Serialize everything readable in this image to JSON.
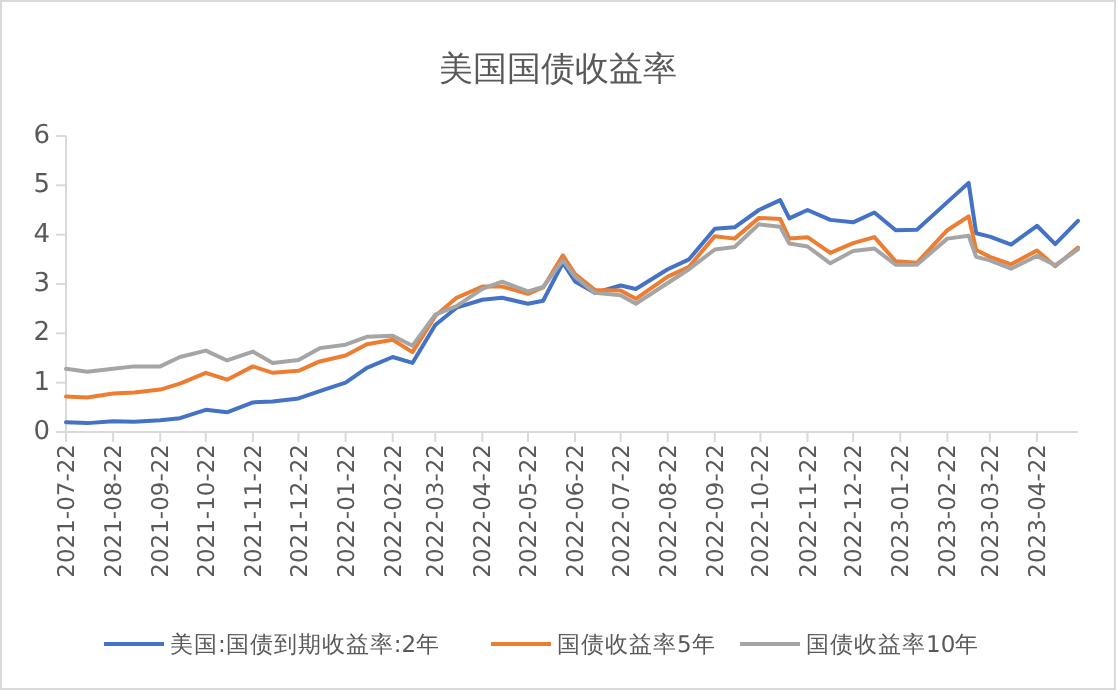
{
  "chart_data": {
    "type": "line",
    "title": "美国国债收益率",
    "x": [
      "2021-07-22",
      "2021-08-05",
      "2021-08-22",
      "2021-09-05",
      "2021-09-22",
      "2021-10-05",
      "2021-10-22",
      "2021-11-05",
      "2021-11-22",
      "2021-12-05",
      "2021-12-22",
      "2022-01-05",
      "2022-01-22",
      "2022-02-05",
      "2022-02-22",
      "2022-03-07",
      "2022-03-22",
      "2022-04-05",
      "2022-04-22",
      "2022-05-05",
      "2022-05-22",
      "2022-06-01",
      "2022-06-14",
      "2022-06-22",
      "2022-07-05",
      "2022-07-22",
      "2022-08-01",
      "2022-08-22",
      "2022-09-05",
      "2022-09-22",
      "2022-10-05",
      "2022-10-21",
      "2022-11-04",
      "2022-11-10",
      "2022-11-22",
      "2022-12-07",
      "2022-12-22",
      "2023-01-05",
      "2023-01-19",
      "2023-02-02",
      "2023-02-22",
      "2023-03-08",
      "2023-03-13",
      "2023-03-22",
      "2023-04-05",
      "2023-04-22",
      "2023-05-04",
      "2023-05-19"
    ],
    "series": [
      {
        "name": "美国:国债到期收益率:2年",
        "color": "#4472c4",
        "values": [
          0.2,
          0.18,
          0.22,
          0.21,
          0.24,
          0.28,
          0.45,
          0.4,
          0.6,
          0.62,
          0.68,
          0.83,
          1.0,
          1.3,
          1.52,
          1.4,
          2.17,
          2.52,
          2.68,
          2.72,
          2.6,
          2.66,
          3.43,
          3.05,
          2.82,
          2.97,
          2.9,
          3.3,
          3.5,
          4.12,
          4.15,
          4.5,
          4.7,
          4.33,
          4.5,
          4.3,
          4.25,
          4.45,
          4.09,
          4.1,
          4.66,
          5.05,
          4.03,
          3.96,
          3.8,
          4.18,
          3.81,
          4.28
        ]
      },
      {
        "name": "国债收益率5年",
        "color": "#ed7d31",
        "values": [
          0.72,
          0.7,
          0.78,
          0.8,
          0.86,
          0.98,
          1.2,
          1.06,
          1.33,
          1.2,
          1.24,
          1.43,
          1.55,
          1.78,
          1.87,
          1.62,
          2.35,
          2.72,
          2.95,
          2.95,
          2.8,
          2.93,
          3.58,
          3.2,
          2.88,
          2.87,
          2.7,
          3.15,
          3.35,
          3.97,
          3.92,
          4.34,
          4.32,
          3.92,
          3.95,
          3.63,
          3.83,
          3.95,
          3.46,
          3.43,
          4.09,
          4.37,
          3.69,
          3.55,
          3.4,
          3.68,
          3.36,
          3.74
        ]
      },
      {
        "name": "国债收益率10年",
        "color": "#a5a5a5",
        "values": [
          1.28,
          1.22,
          1.28,
          1.33,
          1.33,
          1.52,
          1.65,
          1.45,
          1.63,
          1.4,
          1.46,
          1.7,
          1.77,
          1.93,
          1.95,
          1.75,
          2.38,
          2.55,
          2.9,
          3.05,
          2.85,
          2.94,
          3.48,
          3.15,
          2.82,
          2.77,
          2.6,
          3.02,
          3.3,
          3.7,
          3.75,
          4.21,
          4.16,
          3.82,
          3.76,
          3.42,
          3.67,
          3.72,
          3.39,
          3.39,
          3.92,
          3.98,
          3.55,
          3.48,
          3.31,
          3.57,
          3.38,
          3.7
        ]
      }
    ],
    "xlim": [
      "2021-07-22",
      "2023-05-19"
    ],
    "xticks": [
      "2021-07-22",
      "2021-08-22",
      "2021-09-22",
      "2021-10-22",
      "2021-11-22",
      "2021-12-22",
      "2022-01-22",
      "2022-02-22",
      "2022-03-22",
      "2022-04-22",
      "2022-05-22",
      "2022-06-22",
      "2022-07-22",
      "2022-08-22",
      "2022-09-22",
      "2022-10-22",
      "2022-11-22",
      "2022-12-22",
      "2023-01-22",
      "2023-02-22",
      "2023-03-22",
      "2023-04-22"
    ],
    "ylim": [
      0,
      6
    ],
    "yticks": [
      0,
      1,
      2,
      3,
      4,
      5,
      6
    ],
    "grid": false,
    "legend": "bottom",
    "marker": "none",
    "line_style": "solid"
  }
}
